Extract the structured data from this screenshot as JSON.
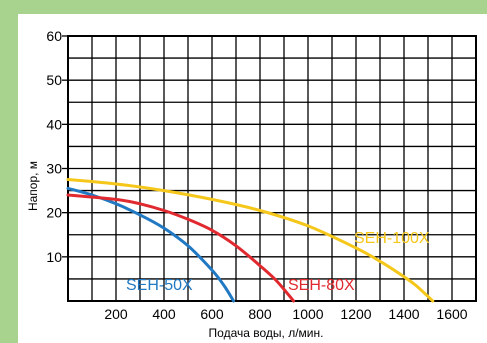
{
  "chart_data": {
    "type": "line",
    "title": "",
    "xlabel": "Подача воды, л/мин.",
    "ylabel": "Напор, м",
    "xlim": [
      0,
      1700
    ],
    "ylim": [
      0,
      60
    ],
    "x_ticks": [
      200,
      400,
      600,
      800,
      1000,
      1200,
      1400,
      1600
    ],
    "y_ticks": [
      10,
      20,
      30,
      40,
      50,
      60
    ],
    "grid": true,
    "series": [
      {
        "name": "SEH-50X",
        "color": "#2079c2",
        "x": [
          0,
          100,
          200,
          300,
          400,
          500,
          600,
          650,
          690
        ],
        "y": [
          25.5,
          24.0,
          22.0,
          19.5,
          16.5,
          12.5,
          7.0,
          3.5,
          0
        ]
      },
      {
        "name": "SEH-80X",
        "color": "#e02a2f",
        "x": [
          0,
          200,
          300,
          400,
          500,
          600,
          700,
          800,
          870,
          940
        ],
        "y": [
          24.0,
          23.0,
          22.0,
          20.5,
          18.5,
          16.0,
          12.5,
          8.0,
          4.5,
          0
        ]
      },
      {
        "name": "SEH-100X",
        "color": "#f5c71a",
        "x": [
          0,
          200,
          400,
          600,
          800,
          1000,
          1200,
          1300,
          1400,
          1450,
          1520
        ],
        "y": [
          27.5,
          26.5,
          25.0,
          23.0,
          20.5,
          17.0,
          12.0,
          9.0,
          5.5,
          3.5,
          0
        ]
      }
    ]
  }
}
